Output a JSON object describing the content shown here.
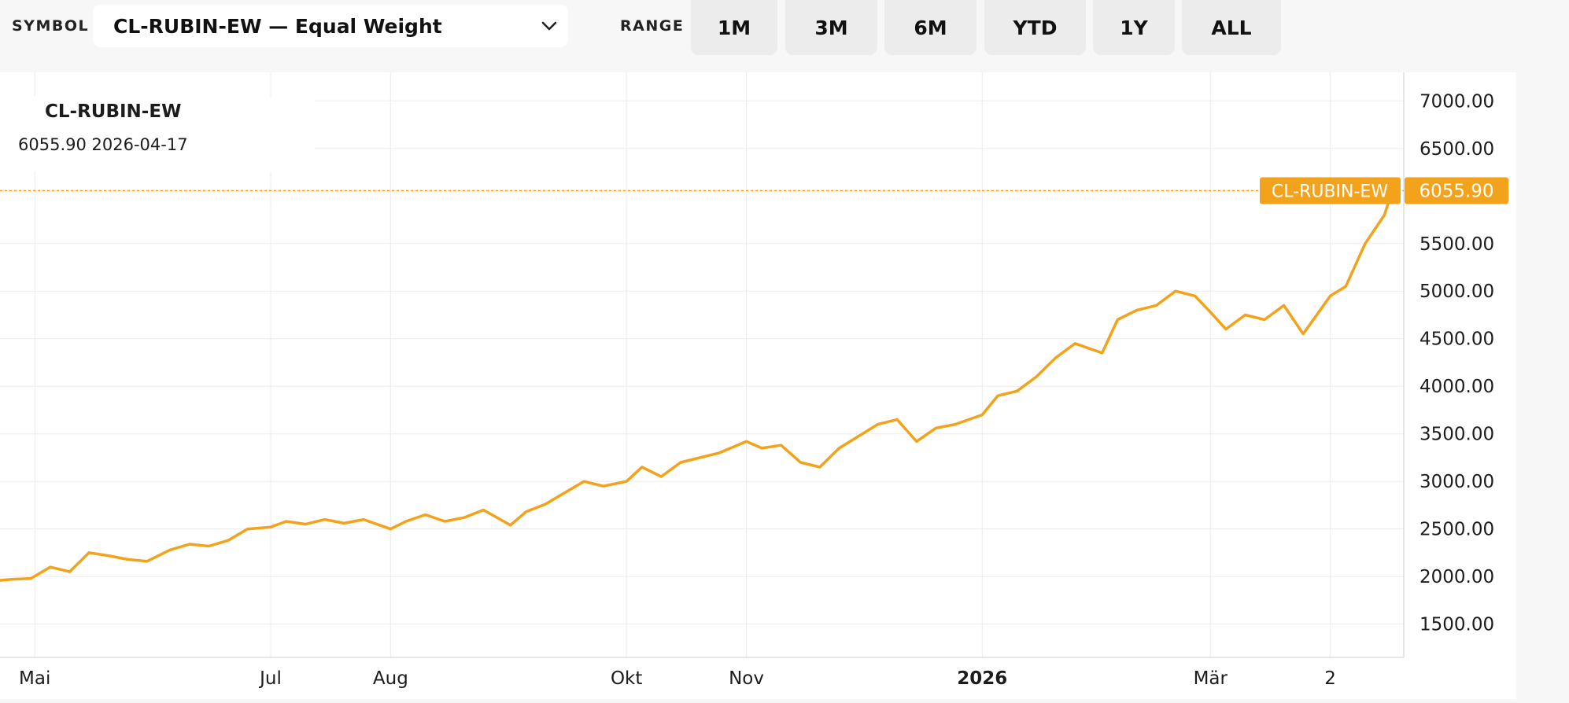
{
  "toolbar": {
    "symbol_label": "SYMBOL",
    "symbol_value": "CL-RUBIN-EW — Equal Weight",
    "range_label": "RANGE",
    "ranges": [
      "1M",
      "3M",
      "6M",
      "YTD",
      "1Y",
      "ALL"
    ]
  },
  "legend": {
    "title": "CL-RUBIN-EW",
    "value": "6055.90",
    "date": "2026-04-17"
  },
  "colors": {
    "series": "#f2a21b",
    "grid": "#ebebeb",
    "text": "#1c1c1c"
  },
  "chart_data": {
    "type": "line",
    "series": [
      {
        "name": "CL-RUBIN-EW",
        "x": [
          "2025-04-22",
          "2025-04-25",
          "2025-04-30",
          "2025-05-05",
          "2025-05-10",
          "2025-05-15",
          "2025-05-20",
          "2025-05-25",
          "2025-05-30",
          "2025-06-05",
          "2025-06-10",
          "2025-06-15",
          "2025-06-20",
          "2025-06-25",
          "2025-07-01",
          "2025-07-05",
          "2025-07-10",
          "2025-07-15",
          "2025-07-20",
          "2025-07-25",
          "2025-08-01",
          "2025-08-05",
          "2025-08-10",
          "2025-08-15",
          "2025-08-20",
          "2025-08-25",
          "2025-09-01",
          "2025-09-05",
          "2025-09-10",
          "2025-09-15",
          "2025-09-20",
          "2025-09-25",
          "2025-10-01",
          "2025-10-05",
          "2025-10-10",
          "2025-10-15",
          "2025-10-20",
          "2025-10-25",
          "2025-11-01",
          "2025-11-05",
          "2025-11-10",
          "2025-11-15",
          "2025-11-20",
          "2025-11-25",
          "2025-12-01",
          "2025-12-05",
          "2025-12-10",
          "2025-12-15",
          "2025-12-20",
          "2025-12-25",
          "2026-01-01",
          "2026-01-05",
          "2026-01-10",
          "2026-01-15",
          "2026-01-20",
          "2026-01-25",
          "2026-02-01",
          "2026-02-05",
          "2026-02-10",
          "2026-02-15",
          "2026-02-20",
          "2026-02-25",
          "2026-03-01",
          "2026-03-05",
          "2026-03-10",
          "2026-03-15",
          "2026-03-20",
          "2026-03-25",
          "2026-04-01",
          "2026-04-05",
          "2026-04-10",
          "2026-04-15",
          "2026-04-17"
        ],
        "values": [
          1960,
          1970,
          1980,
          2100,
          2050,
          2250,
          2220,
          2180,
          2160,
          2280,
          2340,
          2320,
          2380,
          2500,
          2520,
          2580,
          2550,
          2600,
          2560,
          2600,
          2500,
          2580,
          2650,
          2580,
          2620,
          2700,
          2540,
          2680,
          2760,
          2880,
          3000,
          2950,
          3000,
          3150,
          3050,
          3200,
          3250,
          3300,
          3420,
          3350,
          3380,
          3200,
          3150,
          3350,
          3500,
          3600,
          3650,
          3420,
          3560,
          3600,
          3700,
          3900,
          3950,
          4100,
          4300,
          4450,
          4350,
          4700,
          4800,
          4850,
          5000,
          4950,
          4780,
          4600,
          4750,
          4700,
          4850,
          4550,
          4950,
          5050,
          5500,
          5800,
          6055.9
        ],
        "last_value": "6055.90"
      }
    ],
    "xlabel": "",
    "ylabel": "",
    "x_tick_labels": [
      "Mai",
      "Jul",
      "Aug",
      "Okt",
      "Nov",
      "2026",
      "Mär",
      "2"
    ],
    "x_tick_dates": [
      "2025-05-01",
      "2025-07-01",
      "2025-08-01",
      "2025-10-01",
      "2025-11-01",
      "2026-01-01",
      "2026-03-01",
      "2026-04-01"
    ],
    "y_tick_labels": [
      "1500.00",
      "2000.00",
      "2500.00",
      "3000.00",
      "3500.00",
      "4000.00",
      "4500.00",
      "5000.00",
      "5500.00",
      "6500.00",
      "7000.00"
    ],
    "ylim": [
      1150,
      7300
    ],
    "x_range": [
      "2025-04-22",
      "2026-04-20"
    ],
    "grid": true
  }
}
